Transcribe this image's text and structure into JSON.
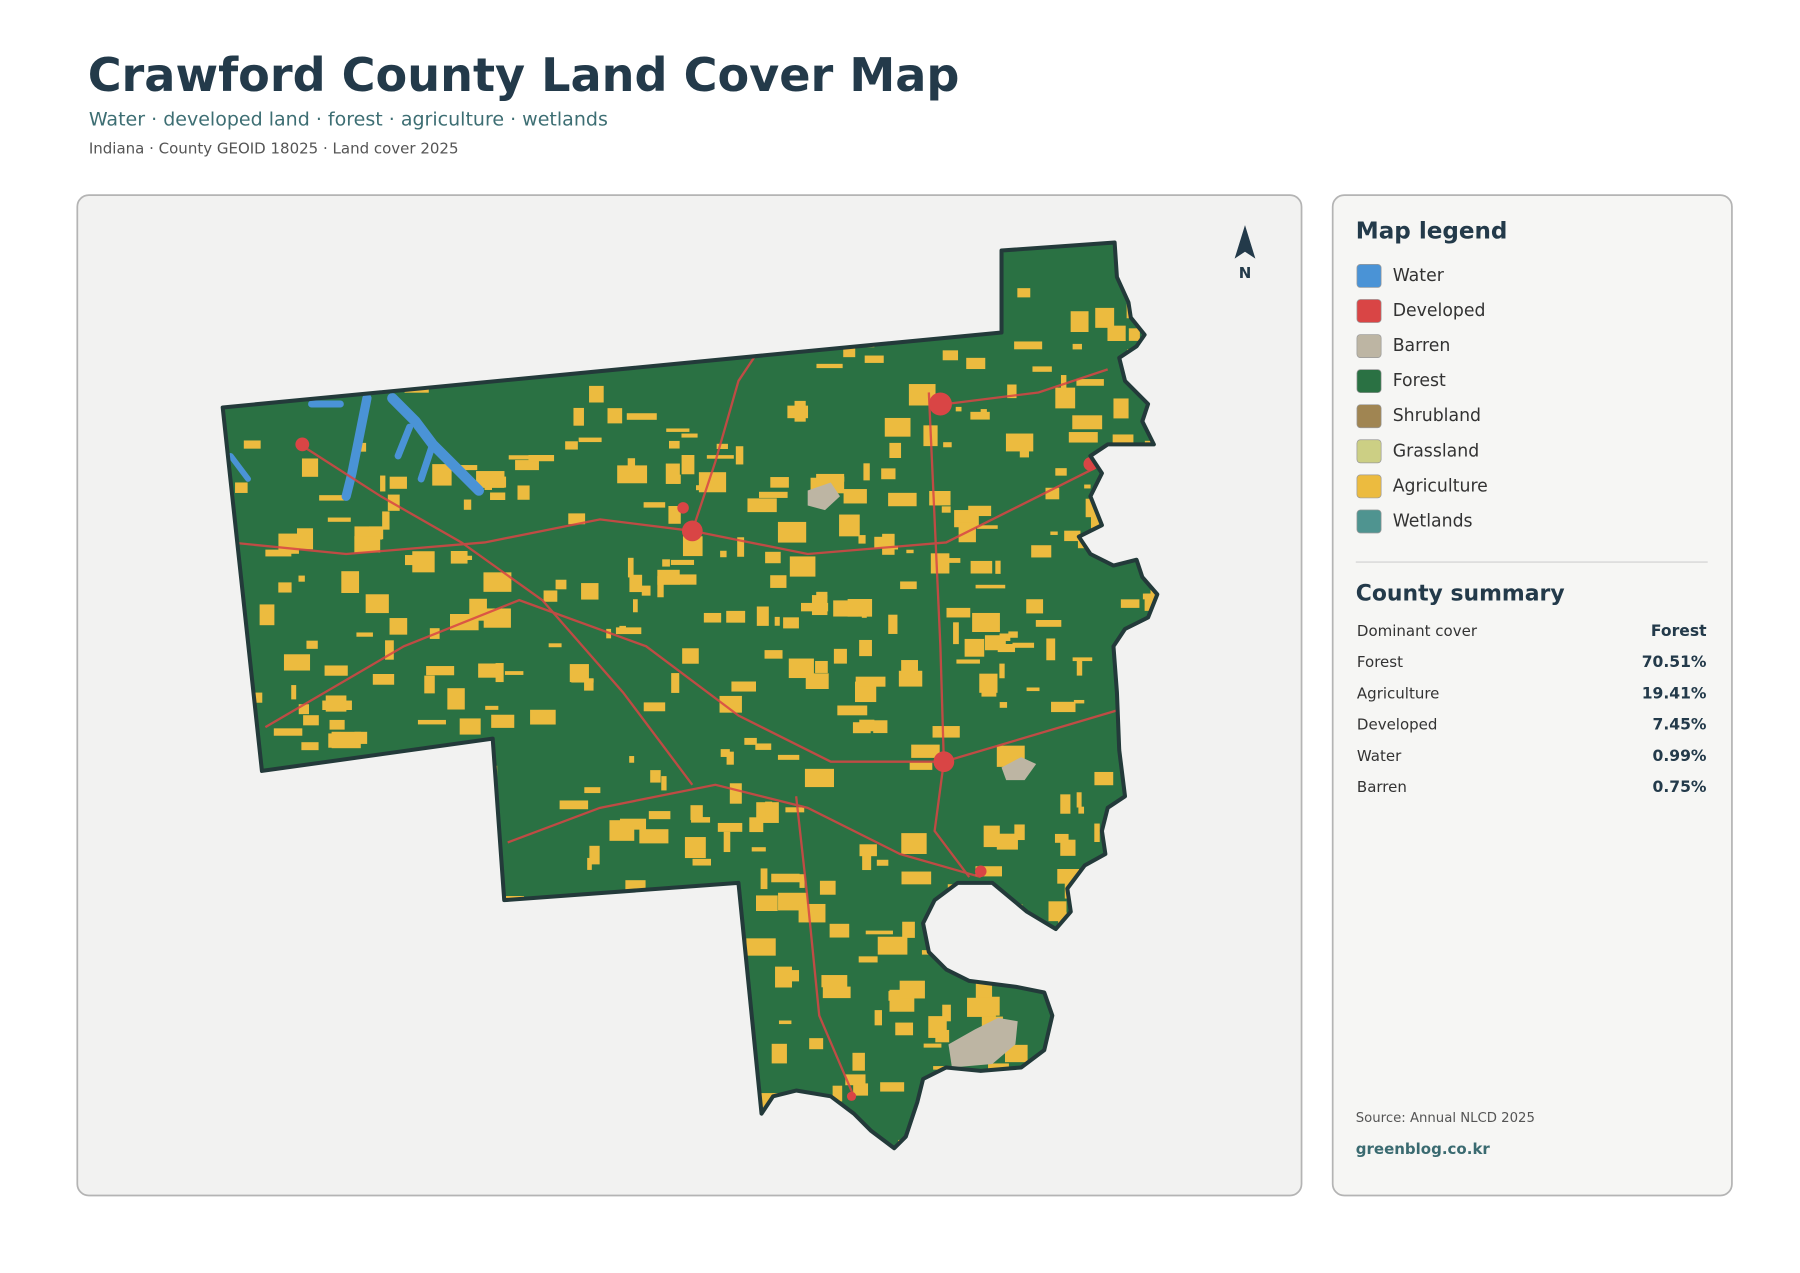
{
  "header": {
    "title": "Crawford County Land Cover Map",
    "subtitle": "Water · developed land · forest · agriculture · wetlands",
    "meta": "Indiana · County GEOID 18025 · Land cover 2025"
  },
  "map": {
    "north_label": "N"
  },
  "legend": {
    "title": "Map legend",
    "items": [
      {
        "name": "Water",
        "color": "#4a93d6"
      },
      {
        "name": "Developed",
        "color": "#d94545"
      },
      {
        "name": "Barren",
        "color": "#bdb5a3"
      },
      {
        "name": "Forest",
        "color": "#2a7143"
      },
      {
        "name": "Shrubland",
        "color": "#a08552"
      },
      {
        "name": "Grassland",
        "color": "#cccf84"
      },
      {
        "name": "Agriculture",
        "color": "#ecbb3f"
      },
      {
        "name": "Wetlands",
        "color": "#4f9490"
      }
    ]
  },
  "summary": {
    "title": "County summary",
    "rows": [
      [
        "Dominant cover",
        "Forest"
      ],
      [
        "Forest",
        "70.51%"
      ],
      [
        "Agriculture",
        "19.41%"
      ],
      [
        "Developed",
        "7.45%"
      ],
      [
        "Water",
        "0.99%"
      ],
      [
        "Barren",
        "0.75%"
      ]
    ]
  },
  "footer": {
    "source": "Source: Annual NLCD 2025",
    "site": "greenblog.co.kr"
  }
}
